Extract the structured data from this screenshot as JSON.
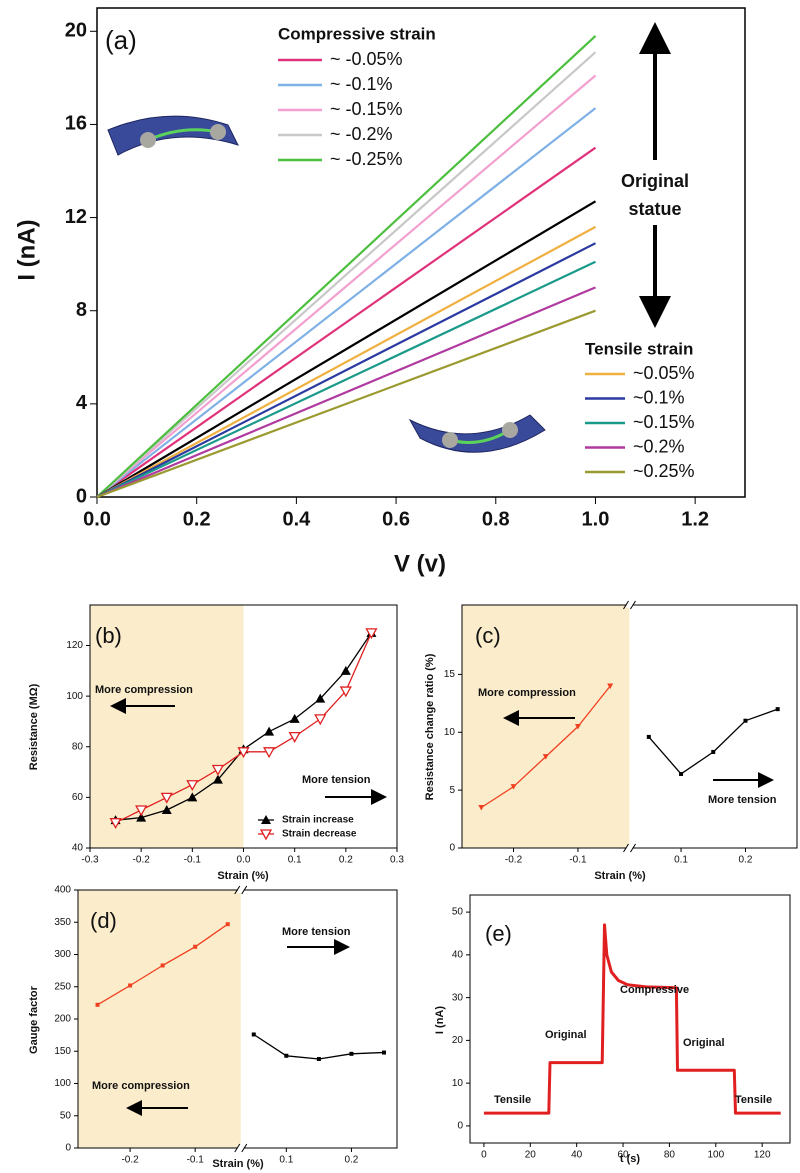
{
  "chart_data": [
    {
      "type": "line",
      "xlabel": "V (v)",
      "ylabel": "I (nA)",
      "xlim": [
        0,
        1.3
      ],
      "ylim": [
        0,
        21
      ],
      "xticks": [
        {
          "value": 0,
          "label": "0.0"
        },
        0.2,
        0.4,
        0.6,
        0.8,
        {
          "value": 1,
          "label": "1.0"
        },
        1.2
      ],
      "yticks": [
        0,
        4,
        8,
        12,
        16,
        20
      ],
      "x": [
        0,
        1.0
      ],
      "series": [
        {
          "name": "~ -0.05%",
          "color": "#e0327a",
          "values": [
            0,
            15.0
          ]
        },
        {
          "name": "~ -0.1%",
          "color": "#7fb0e6",
          "values": [
            0,
            16.7
          ]
        },
        {
          "name": "~ -0.15%",
          "color": "#f2a0d0",
          "values": [
            0,
            18.1
          ]
        },
        {
          "name": "~ -0.2%",
          "color": "#c8c8c8",
          "values": [
            0,
            19.1
          ]
        },
        {
          "name": "~ -0.25%",
          "color": "#4cbf3f",
          "values": [
            0,
            19.8
          ]
        },
        {
          "color": "#000000",
          "values": [
            0,
            12.7
          ]
        },
        {
          "name": "~0.05%",
          "color": "#f0b040",
          "values": [
            0,
            11.6
          ]
        },
        {
          "name": "~0.1%",
          "color": "#2a3aa0",
          "values": [
            0,
            10.9
          ]
        },
        {
          "name": "~0.15%",
          "color": "#1a9a8a",
          "values": [
            0,
            10.1
          ]
        },
        {
          "name": "~0.2%",
          "color": "#b03aa0",
          "values": [
            0,
            9.0
          ]
        },
        {
          "name": "~0.25%",
          "color": "#9a9a30",
          "values": [
            0,
            8.0
          ]
        }
      ],
      "annotations": [
        "(a)",
        "Compressive strain",
        "Original",
        "statue",
        "Tensile strain"
      ]
    },
    {
      "type": "line",
      "xlabel": "Strain (%)",
      "ylabel": "Resistance (MΩ)",
      "xlim": [
        -0.3,
        0.3
      ],
      "ylim": [
        40,
        136
      ],
      "xticks": [
        -0.3,
        -0.2,
        -0.1,
        {
          "value": 0,
          "label": "0.0"
        },
        0.1,
        0.2,
        0.3
      ],
      "yticks": [
        40,
        60,
        80,
        100,
        120
      ],
      "shade": [
        -0.3,
        0
      ],
      "shade_color": "#fbeccb",
      "x": [
        -0.25,
        -0.2,
        -0.15,
        -0.1,
        -0.05,
        0,
        0.05,
        0.1,
        0.15,
        0.2,
        0.25
      ],
      "series": [
        {
          "name": "Strain increase",
          "color": "#000000",
          "marker": "triangle-up",
          "values": [
            51,
            52,
            55,
            60,
            67,
            79,
            86,
            91,
            99,
            110,
            125
          ]
        },
        {
          "name": "Strain decrease",
          "color": "#e02020",
          "marker": "triangle-down-open",
          "values": [
            50,
            55,
            60,
            65,
            71,
            78,
            78,
            84,
            91,
            102,
            125
          ]
        }
      ],
      "annotations": [
        "(b)",
        "More compression",
        "More tension"
      ]
    },
    {
      "type": "line",
      "xlabel": "Strain (%)",
      "ylabel": "Resistance change ratio (%)",
      "xlim": [
        -0.28,
        0.28
      ],
      "x_break": [
        -0.02,
        0.02
      ],
      "ylim": [
        0,
        21
      ],
      "xticks": [
        -0.2,
        -0.1,
        0.1,
        0.2
      ],
      "yticks": [
        0,
        5,
        10,
        15
      ],
      "shade": [
        -0.28,
        -0.02
      ],
      "shade_color": "#fbeccb",
      "series": [
        {
          "color": "#f04020",
          "marker": "triangle-down",
          "x": [
            -0.25,
            -0.2,
            -0.15,
            -0.1,
            -0.05
          ],
          "values": [
            3.5,
            5.3,
            7.9,
            10.5,
            14.0
          ]
        },
        {
          "color": "#000000",
          "marker": "square",
          "x": [
            0.05,
            0.1,
            0.15,
            0.2,
            0.25
          ],
          "values": [
            9.6,
            6.4,
            8.3,
            11.0,
            12.0
          ]
        }
      ],
      "annotations": [
        "(c)",
        "More compression",
        "More tension"
      ]
    },
    {
      "type": "line",
      "xlabel": "Strain (%)",
      "ylabel": "Gauge factor",
      "xlim": [
        -0.28,
        0.27
      ],
      "x_break": [
        -0.03,
        0.03
      ],
      "ylim": [
        0,
        400
      ],
      "xticks": [
        -0.2,
        -0.1,
        0.1,
        0.2
      ],
      "yticks": [
        0,
        50,
        100,
        150,
        200,
        250,
        300,
        350,
        400
      ],
      "shade": [
        -0.28,
        -0.03
      ],
      "shade_color": "#fbeccb",
      "series": [
        {
          "color": "#f04020",
          "marker": "square",
          "x": [
            -0.25,
            -0.2,
            -0.15,
            -0.1,
            -0.05
          ],
          "values": [
            222,
            252,
            283,
            312,
            347
          ]
        },
        {
          "color": "#000000",
          "marker": "square",
          "x": [
            0.05,
            0.1,
            0.15,
            0.2,
            0.25
          ],
          "values": [
            176,
            143,
            138,
            146,
            148
          ]
        }
      ],
      "annotations": [
        "(d)",
        "More tension",
        "More compression"
      ]
    },
    {
      "type": "line",
      "xlabel": "t (s)",
      "ylabel": "I (nA)",
      "xlim": [
        -6,
        132
      ],
      "ylim": [
        -4,
        54
      ],
      "xticks": [
        0,
        20,
        40,
        60,
        80,
        100,
        120
      ],
      "yticks": [
        0,
        10,
        20,
        30,
        40,
        50
      ],
      "x": [
        0,
        28,
        28.5,
        51,
        51.5,
        52,
        53,
        55,
        58,
        62,
        70,
        83,
        83.5,
        108,
        108.5,
        128
      ],
      "series": [
        {
          "color": "#e02020",
          "width": 3,
          "values": [
            3,
            3,
            14.8,
            14.8,
            30,
            47,
            40,
            36,
            34,
            33,
            32.5,
            32.3,
            13,
            13,
            3,
            3
          ]
        }
      ],
      "annotations": [
        "(e)",
        "Tensile",
        "Original",
        "Compressive",
        "Original",
        "Tensile"
      ]
    }
  ]
}
